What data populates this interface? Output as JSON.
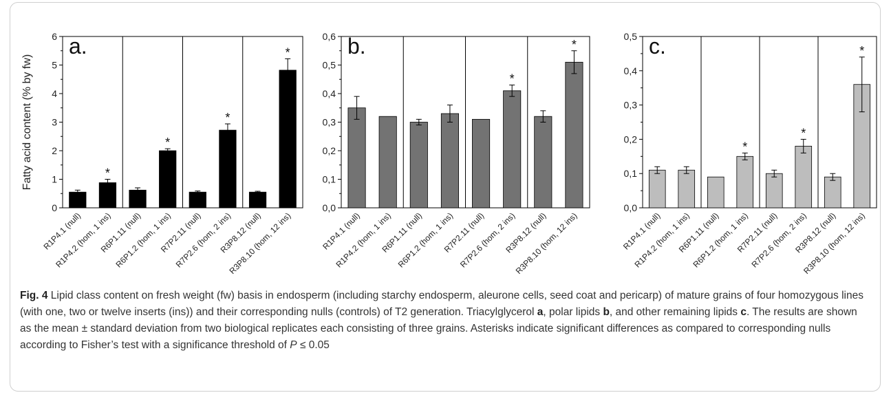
{
  "caption": {
    "fig_label": "Fig. 4",
    "p1": " Lipid class content on fresh weight (fw) basis in endosperm (including starchy endosperm, aleurone cells, seed coat and pericarp) of mature grains of four homozygous lines (with one, two or twelve inserts (ins)) and their corresponding nulls (controls) of T2 generation. Triacylglycerol ",
    "ref_a": "a",
    "p2": ", polar lipids ",
    "ref_b": "b",
    "p3": ", and other remaining lipids ",
    "ref_c": "c",
    "p4": ". The results are shown as the mean ± standard deviation from two biological replicates each consisting of three grains. Asterisks indicate significant differences as compared to corresponding nulls according to Fisher’s test with a significance threshold of ",
    "p_italic": "P",
    "p5": " ≤ 0.05"
  },
  "chart_data": [
    {
      "type": "bar",
      "panel_label": "a.",
      "ylabel": "Fatty acid content (% by fw)",
      "categories": [
        "R1P4.1 (null)",
        "R1P4.2 (hom, 1 ins)",
        "R6P1.11 (null)",
        "R6P1.2 (hom, 1 ins)",
        "R7P2.11 (null)",
        "R7P2.6 (hom, 2 ins)",
        "R3P8.12 (null)",
        "R3P8.10 (hom, 12 ins)"
      ],
      "values": [
        0.55,
        0.88,
        0.62,
        2.0,
        0.55,
        2.72,
        0.55,
        4.82
      ],
      "errors": [
        0.07,
        0.12,
        0.08,
        0.07,
        0.04,
        0.22,
        0.03,
        0.4
      ],
      "significant": [
        false,
        true,
        false,
        true,
        false,
        true,
        false,
        true
      ],
      "ylim": [
        0,
        6
      ],
      "yticks": [
        "0",
        "1",
        "2",
        "3",
        "4",
        "5",
        "6"
      ],
      "bar_color": "#000000",
      "group_separators": true
    },
    {
      "type": "bar",
      "panel_label": "b.",
      "ylabel": "",
      "categories": [
        "R1P4.1 (null)",
        "R1P4.2 (hom, 1 ins)",
        "R6P1.11 (null)",
        "R6P1.2 (hom, 1 ins)",
        "R7P2.11 (null)",
        "R7P2.6 (hom, 2 ins)",
        "R3P8.12 (null)",
        "R3P8.10 (hom, 12 ins)"
      ],
      "values": [
        0.35,
        0.32,
        0.3,
        0.33,
        0.31,
        0.41,
        0.32,
        0.51
      ],
      "errors": [
        0.04,
        0.0,
        0.01,
        0.03,
        0.0,
        0.02,
        0.02,
        0.04
      ],
      "significant": [
        false,
        false,
        false,
        false,
        false,
        true,
        false,
        true
      ],
      "ylim": [
        0,
        0.6
      ],
      "yticks": [
        "0,0",
        "0,1",
        "0,2",
        "0,3",
        "0,4",
        "0,5",
        "0,6"
      ],
      "bar_color": "#737373",
      "group_separators": true
    },
    {
      "type": "bar",
      "panel_label": "c.",
      "ylabel": "",
      "categories": [
        "R1P4.1 (null)",
        "R1P4.2 (hom, 1 ins)",
        "R6P1.11 (null)",
        "R6P1.2 (hom, 1 ins)",
        "R7P2.11 (null)",
        "R7P2.6 (hom, 2 ins)",
        "R3P8.12 (null)",
        "R3P8.10 (hom, 12 ins)"
      ],
      "values": [
        0.11,
        0.11,
        0.09,
        0.15,
        0.1,
        0.18,
        0.09,
        0.36
      ],
      "errors": [
        0.01,
        0.01,
        0.0,
        0.01,
        0.01,
        0.02,
        0.01,
        0.08
      ],
      "significant": [
        false,
        false,
        false,
        true,
        false,
        true,
        false,
        true
      ],
      "ylim": [
        0,
        0.5
      ],
      "yticks": [
        "0,0",
        "0,1",
        "0,2",
        "0,3",
        "0,4",
        "0,5"
      ],
      "bar_color": "#bdbdbd",
      "group_separators": true
    }
  ]
}
